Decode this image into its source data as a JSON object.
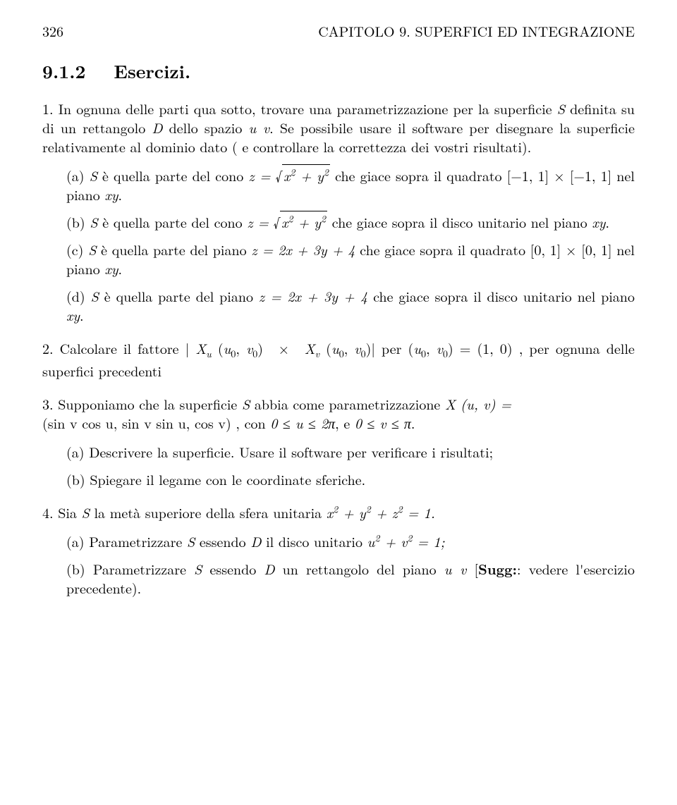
{
  "header": {
    "page_number": "326",
    "running_title": "CAPITOLO 9.  SUPERFICI ED INTEGRAZIONE"
  },
  "section": {
    "number": "9.1.2",
    "title": "Esercizi."
  },
  "ex1": {
    "num": "1.",
    "intro_a": "In ognuna delle parti qua sotto, trovare una parametrizzazione per la superficie ",
    "intro_b": " definita su di un rettangolo ",
    "intro_c": " dello spazio ",
    "intro_d": ". Se possibile usare il software per disegnare la superficie relativamente al dominio dato ( e controllare la correttezza dei vostri risultati).",
    "S": "S",
    "D": "D",
    "uv": "u v",
    "a": {
      "lbl": "(a)",
      "t1": " è quella parte del cono ",
      "t2": " che giace sopra il quadrato ",
      "domain": "[−1, 1] × [−1, 1]",
      "t3": " nel piano ",
      "xy": "xy",
      "end": "."
    },
    "b": {
      "lbl": "(b)",
      "t1": " è quella parte del cono ",
      "t2": " che giace sopra il disco unitario nel piano ",
      "xy": "xy",
      "end": "."
    },
    "c": {
      "lbl": "(c)",
      "t1": " è quella parte del piano ",
      "eq": "z = 2x + 3y + 4",
      "t2": " che giace sopra il quadrato ",
      "domain": "[0, 1] × [0, 1]",
      "t3": " nel piano ",
      "xy": "xy",
      "end": "."
    },
    "d": {
      "lbl": "(d)",
      "t1": " è quella parte del piano ",
      "eq": "z = 2x + 3y + 4",
      "t2": " che giace sopra il disco unitario nel piano ",
      "xy": "xy",
      "end": "."
    }
  },
  "ex2": {
    "num": "2.",
    "t1": "Calcolare il fattore ",
    "t2": " per ",
    "pt": "(u",
    "pt2": ", v",
    "pt3": ") = (1, 0)",
    "t3": " , per ognuna delle superfici precedenti"
  },
  "ex3": {
    "num": "3.",
    "t1": "Supponiamo che la superficie ",
    "S": "S",
    "t2": " abbia come parametrizzazione ",
    "X": "X (u, v) =",
    "param": "(sin v cos u, sin v sin u, cos v)",
    "t3": " , con ",
    "r1": "0 ≤ u ≤ 2π",
    "t4": ", e  ",
    "r2": "0 ≤ v ≤ π",
    "end": ".",
    "a": {
      "lbl": "(a)",
      "txt": "Descrivere la superficie. Usare il software per verificare i risultati;"
    },
    "b": {
      "lbl": "(b)",
      "txt": "Spiegare il legame con le coordinate sferiche."
    }
  },
  "ex4": {
    "num": "4.",
    "t1": "Sia ",
    "S": "S",
    "t2": " la metà superiore della sfera unitaria ",
    "eq_a": "x",
    "eq_b": " + y",
    "eq_c": " + z",
    "eq_d": " = 1.",
    "a": {
      "lbl": "(a)",
      "t1": "Parametrizzare ",
      "S": "S",
      "t2": " essendo ",
      "D": "D",
      "t3": " il disco unitario ",
      "eq_a": "u",
      "eq_b": " + v",
      "eq_c": " = 1;"
    },
    "b": {
      "lbl": "(b)",
      "t1": "Parametrizzare ",
      "S": "S",
      "t2": " essendo ",
      "D": "D",
      "t3": " un rettangolo del piano ",
      "uv": "u v",
      "t4": " [",
      "sugg": "Sugg:",
      "t5": ": vedere l'esercizio precedente)."
    }
  },
  "math": {
    "z_eq": "z =",
    "x2y2": "x² + y²",
    "Xu": "X",
    "u": "u",
    "v": "v",
    "zero": "0",
    "cross": " × ",
    "lp": " (u",
    "cm": ", v",
    "rp": ")",
    "bar": "|"
  }
}
